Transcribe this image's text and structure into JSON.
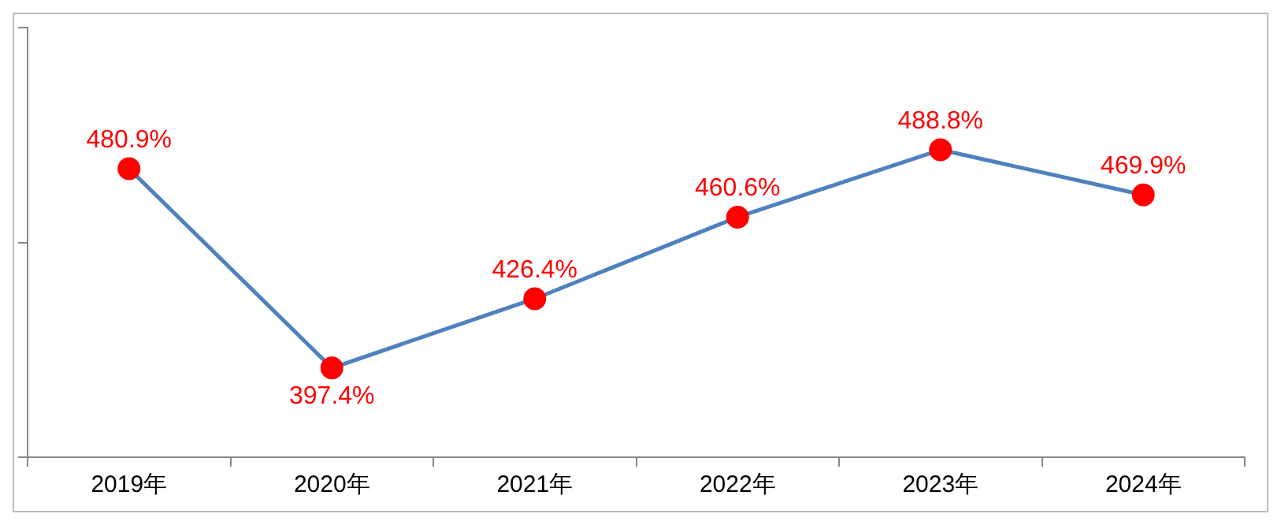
{
  "chart_data": {
    "type": "line",
    "categories": [
      "2019年",
      "2020年",
      "2021年",
      "2022年",
      "2023年",
      "2024年"
    ],
    "series": [
      {
        "color": "#4f81bd",
        "colors": [
          "#ff0000",
          "#ff0000",
          "#ff0000",
          "#ff0000",
          "#ff0000",
          "#ff0000"
        ],
        "values": [
          480.9,
          397.4,
          426.4,
          460.6,
          488.8,
          469.9
        ],
        "value_labels": [
          "480.9%",
          "397.4%",
          "426.4%",
          "460.6%",
          "488.8%",
          "469.9%"
        ]
      }
    ],
    "marker": "circle",
    "tick_labels": "x",
    "grid": false,
    "legend": false
  }
}
